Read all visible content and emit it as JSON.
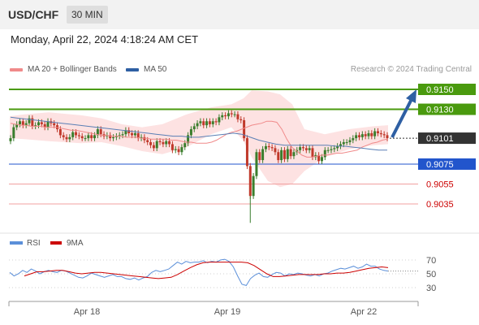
{
  "header": {
    "pair": "USD/CHF",
    "timeframe": "30 MIN"
  },
  "datetime": "Monday, April 22, 2024 4:18:24 AM CET",
  "legend": {
    "items": [
      {
        "label": "MA 20 + Bollinger Bands",
        "color": "#f08a8a"
      },
      {
        "label": "MA 50",
        "color": "#2e5fa3"
      }
    ],
    "credit": "Research © 2024 Trading Central"
  },
  "colors": {
    "up": "#3a7d2c",
    "down": "#c0392b",
    "resistance": "#4a9a0e",
    "support": "#2255cc",
    "support_light": "#f0a0a0",
    "current": "#333333",
    "rsi": "#5b8fd9",
    "rsi_ma": "#cc0000",
    "band": "#fde2e2"
  },
  "chart_data": [
    {
      "type": "candlestick",
      "x_ticks": [
        "Apr 18",
        "Apr 19",
        "Apr 22"
      ],
      "ylim": [
        0.9005,
        0.9163
      ],
      "grid": false,
      "levels": [
        {
          "label": "0.9150",
          "value": 0.915,
          "kind": "resistance"
        },
        {
          "label": "0.9130",
          "value": 0.913,
          "kind": "resistance"
        },
        {
          "label": "0.9101",
          "value": 0.9101,
          "kind": "current"
        },
        {
          "label": "0.9075",
          "value": 0.9075,
          "kind": "support"
        },
        {
          "label": "0.9055",
          "value": 0.9055,
          "kind": "support_light"
        },
        {
          "label": "0.9035",
          "value": 0.9035,
          "kind": "support_light"
        }
      ],
      "closes": [
        0.9101,
        0.9112,
        0.9115,
        0.9118,
        0.9114,
        0.9116,
        0.9121,
        0.9113,
        0.9114,
        0.9117,
        0.9115,
        0.9112,
        0.9118,
        0.9116,
        0.9114,
        0.911,
        0.9104,
        0.9102,
        0.91,
        0.9102,
        0.9107,
        0.9104,
        0.9103,
        0.9101,
        0.9101,
        0.9104,
        0.9101,
        0.9104,
        0.911,
        0.9105,
        0.9103,
        0.9104,
        0.9101,
        0.9102,
        0.9103,
        0.9104,
        0.9105,
        0.9109,
        0.9106,
        0.9104,
        0.9106,
        0.9101,
        0.9102,
        0.9099,
        0.9097,
        0.9094,
        0.9091,
        0.9098,
        0.9097,
        0.9095,
        0.9098,
        0.9095,
        0.9089,
        0.909,
        0.9087,
        0.9092,
        0.9096,
        0.9104,
        0.911,
        0.9113,
        0.9116,
        0.9118,
        0.9114,
        0.9118,
        0.9115,
        0.9118,
        0.9117,
        0.9122,
        0.9124,
        0.9123,
        0.9126,
        0.9125,
        0.9125,
        0.912,
        0.9119,
        0.9101,
        0.9073,
        0.9043,
        0.9063,
        0.9087,
        0.9079,
        0.909,
        0.9093,
        0.9092,
        0.9091,
        0.9087,
        0.9079,
        0.9089,
        0.908,
        0.909,
        0.9083,
        0.9087,
        0.9089,
        0.9092,
        0.9091,
        0.9089,
        0.9091,
        0.9082,
        0.9084,
        0.9078,
        0.9082,
        0.9089,
        0.9089,
        0.909,
        0.9091,
        0.9093,
        0.9095,
        0.9097,
        0.9097,
        0.9099,
        0.9101,
        0.9104,
        0.9102,
        0.9105,
        0.9103,
        0.9106,
        0.9103,
        0.9108,
        0.9106,
        0.9105,
        0.9104,
        0.9101
      ],
      "ma20": [
        0.9116,
        0.9115,
        0.9114,
        0.9114,
        0.9113,
        0.9113,
        0.9113,
        0.9112,
        0.9112,
        0.9112,
        0.9111,
        0.911,
        0.9109,
        0.9109,
        0.9108,
        0.9107,
        0.9106,
        0.9105,
        0.9104,
        0.9104,
        0.9103,
        0.9103,
        0.9103,
        0.9102,
        0.9102,
        0.9102,
        0.9101,
        0.9101,
        0.91,
        0.91,
        0.91,
        0.91,
        0.9099,
        0.9099,
        0.9098,
        0.9097,
        0.9097,
        0.9096,
        0.9096,
        0.9096,
        0.9097,
        0.9099,
        0.9102,
        0.9105,
        0.9107,
        0.9108,
        0.911,
        0.9112,
        0.9114,
        0.9115,
        0.9116,
        0.9118,
        0.9118,
        0.9117,
        0.911,
        0.91,
        0.9092,
        0.9088,
        0.9084,
        0.9082,
        0.9082,
        0.9083,
        0.9084,
        0.9084,
        0.9085,
        0.9086,
        0.9086,
        0.9087,
        0.9088,
        0.9089,
        0.9092,
        0.9094,
        0.9096,
        0.9097,
        0.9099,
        0.91
      ],
      "ma50": [
        0.9122,
        0.9121,
        0.912,
        0.9119,
        0.9118,
        0.9117,
        0.9116,
        0.9115,
        0.9114,
        0.9113,
        0.9112,
        0.9111,
        0.911,
        0.9109,
        0.9108,
        0.9107,
        0.9106,
        0.9105,
        0.9104,
        0.9103,
        0.9103,
        0.9102,
        0.9102,
        0.9103,
        0.9104,
        0.9105,
        0.9106,
        0.9105,
        0.9102,
        0.9099,
        0.9097,
        0.9095,
        0.9094,
        0.9094,
        0.9094,
        0.9094,
        0.9094,
        0.9094,
        0.9093,
        0.9093,
        0.9092,
        0.9091,
        0.909,
        0.9089,
        0.9089
      ]
    },
    {
      "type": "line",
      "title": "RSI",
      "series": [
        {
          "name": "RSI",
          "values": [
            52,
            47,
            50,
            55,
            52,
            57,
            54,
            50,
            53,
            55,
            53,
            52,
            55,
            54,
            51,
            48,
            45,
            44,
            47,
            51,
            49,
            47,
            45,
            47,
            49,
            46,
            46,
            43,
            42,
            44,
            41,
            44,
            46,
            52,
            55,
            53,
            55,
            57,
            62,
            67,
            64,
            68,
            66,
            67,
            67,
            69,
            66,
            68,
            67,
            70,
            71,
            68,
            60,
            47,
            35,
            33,
            43,
            48,
            51,
            46,
            45,
            49,
            52,
            51,
            47,
            50,
            49,
            51,
            50,
            48,
            47,
            49,
            47,
            50,
            51,
            54,
            56,
            58,
            57,
            59,
            61,
            58,
            60,
            64,
            61,
            61,
            57,
            55,
            54
          ]
        },
        {
          "name": "9MA",
          "values": [
            47,
            50,
            53,
            53,
            54,
            55,
            55,
            53,
            51,
            50,
            51,
            52,
            52,
            51,
            50,
            49,
            48,
            47,
            46,
            45,
            44,
            43,
            44,
            45,
            49,
            54,
            59,
            63,
            66,
            67,
            67,
            67,
            67,
            67,
            67,
            66,
            62,
            56,
            50,
            46,
            46,
            47,
            48,
            49,
            49,
            49,
            49,
            50,
            50,
            51,
            51,
            52,
            54,
            56,
            58,
            59,
            60,
            59
          ]
        }
      ],
      "ylim": [
        20,
        80
      ],
      "y_ticks": [
        "70",
        "50",
        "30"
      ],
      "legend": [
        "RSI",
        "9MA"
      ]
    }
  ]
}
